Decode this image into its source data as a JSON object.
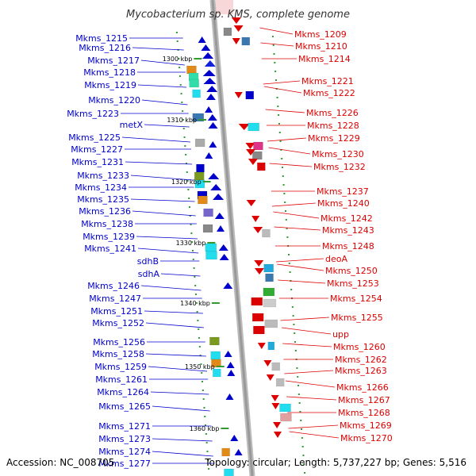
{
  "title": "Mycobacterium sp. KMS, complete genome",
  "footer": {
    "accession": "Accession: NC_008705",
    "topology": "Topology: circular; Length: 5,737,227 bp; Genes: 5,516"
  },
  "colors": {
    "left_label": "#0000cc",
    "right_label": "#dd0000",
    "backbone": "#999999",
    "tick": "#339933"
  },
  "ticks": [
    "1300 kbp",
    "1310 kbp",
    "1320 kbp",
    "1330 kbp",
    "1340 kbp",
    "1350 kbp",
    "1360 kbp"
  ],
  "left_genes": [
    "Mkms_1215",
    "Mkms_1216",
    "Mkms_1217",
    "Mkms_1218",
    "Mkms_1219",
    "Mkms_1220",
    "Mkms_1223",
    "metX",
    "Mkms_1225",
    "Mkms_1227",
    "Mkms_1231",
    "Mkms_1233",
    "Mkms_1234",
    "Mkms_1235",
    "Mkms_1236",
    "Mkms_1238",
    "Mkms_1239",
    "Mkms_1241",
    "sdhB",
    "sdhA",
    "Mkms_1246",
    "Mkms_1247",
    "Mkms_1251",
    "Mkms_1252",
    "Mkms_1256",
    "Mkms_1258",
    "Mkms_1259",
    "Mkms_1261",
    "Mkms_1264",
    "Mkms_1265",
    "Mkms_1271",
    "Mkms_1273",
    "Mkms_1274",
    "Mkms_1277"
  ],
  "right_genes": [
    "Mkms_1209",
    "Mkms_1210",
    "Mkms_1214",
    "Mkms_1221",
    "Mkms_1222",
    "Mkms_1226",
    "Mkms_1228",
    "Mkms_1229",
    "Mkms_1230",
    "Mkms_1232",
    "Mkms_1237",
    "Mkms_1240",
    "Mkms_1242",
    "Mkms_1243",
    "Mkms_1248",
    "deoA",
    "Mkms_1250",
    "Mkms_1253",
    "Mkms_1254",
    "Mkms_1255",
    "upp",
    "Mkms_1260",
    "Mkms_1262",
    "Mkms_1263",
    "Mkms_1266",
    "Mkms_1267",
    "Mkms_1268",
    "Mkms_1269",
    "Mkms_1270"
  ]
}
